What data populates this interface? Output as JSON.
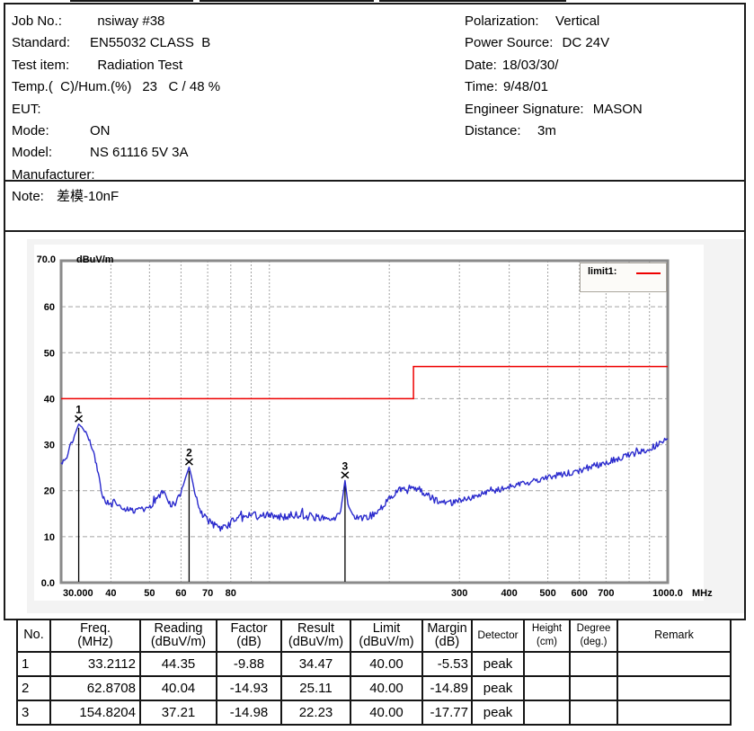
{
  "header": {
    "left_rows": [
      {
        "label": "Job No.:",
        "value": "  nsiway #38"
      },
      {
        "label": "Standard:",
        "value": "EN55032 CLASS  B"
      },
      {
        "label": "Test item:",
        "value": "  Radiation Test"
      },
      {
        "label": "Temp.(  C)/Hum.(%)",
        "value": "23   C / 48 %"
      },
      {
        "label": "EUT:",
        "value": ""
      },
      {
        "label": "Mode:",
        "value": "ON"
      },
      {
        "label": "Model:",
        "value": "NS 61116 5V 3A"
      },
      {
        "label": "Manufacturer:",
        "value": ""
      }
    ],
    "right_rows": [
      {
        "label": "Polarization:",
        "value": "   Vertical"
      },
      {
        "label": "Power Source:",
        "value": " DC 24V"
      },
      {
        "label": "Date:",
        "value": "18/03/30/"
      },
      {
        "label": "Time:",
        "value": "9/48/01"
      },
      {
        "label": "Engineer Signature:",
        "value": " MASON"
      },
      {
        "label": "Distance:",
        "value": "   3m"
      }
    ]
  },
  "note": {
    "label": "Note:",
    "value": "差模-10nF"
  },
  "chart_data": {
    "type": "line",
    "x_scale": "log",
    "x_range": [
      30,
      1000
    ],
    "y_range": [
      0,
      70
    ],
    "x_unit": "MHz",
    "y_unit": "dBuV/m",
    "y_top_label": "70.0",
    "y_bottom_label": "0.0",
    "y_tick_labels": [
      60,
      50,
      40,
      30,
      20,
      10
    ],
    "x_gridlines": [
      40,
      50,
      60,
      70,
      80,
      90,
      100,
      200,
      300,
      400,
      500,
      600,
      700,
      800,
      900
    ],
    "x_tick_labels": [
      {
        "f": 30,
        "text": "30.000"
      },
      {
        "f": 40,
        "text": "40"
      },
      {
        "f": 50,
        "text": "50"
      },
      {
        "f": 60,
        "text": "60"
      },
      {
        "f": 70,
        "text": "70"
      },
      {
        "f": 80,
        "text": "80"
      },
      {
        "f": 300,
        "text": "300"
      },
      {
        "f": 400,
        "text": "400"
      },
      {
        "f": 500,
        "text": "500"
      },
      {
        "f": 600,
        "text": "600"
      },
      {
        "f": 700,
        "text": "700"
      },
      {
        "f": 1000,
        "text": "1000.0"
      }
    ],
    "legend": {
      "label": "limit1:",
      "color": "#ee0000"
    },
    "limit_line": {
      "name": "limit1",
      "color": "#ee0000",
      "points": [
        [
          30,
          40
        ],
        [
          230,
          40
        ],
        [
          230,
          47
        ],
        [
          1000,
          47
        ]
      ]
    },
    "markers": [
      {
        "no": "1",
        "freq": 33.2112,
        "value": 34.47
      },
      {
        "no": "2",
        "freq": 62.8708,
        "value": 25.11
      },
      {
        "no": "3",
        "freq": 154.8204,
        "value": 22.23
      }
    ],
    "trace": {
      "color": "#2b2bcd",
      "anchors": [
        [
          30,
          25.8
        ],
        [
          30.6,
          26.5
        ],
        [
          31.2,
          28.2
        ],
        [
          32,
          30.8
        ],
        [
          32.6,
          32.6
        ],
        [
          33.2112,
          34.47
        ],
        [
          33.8,
          33.8
        ],
        [
          34.6,
          32.6
        ],
        [
          35.4,
          31
        ],
        [
          36.2,
          28.6
        ],
        [
          37,
          24.5
        ],
        [
          37.8,
          20
        ],
        [
          38.6,
          17.6
        ],
        [
          39.5,
          17.2
        ],
        [
          40.5,
          17.9
        ],
        [
          41.5,
          16.6
        ],
        [
          43,
          16.1
        ],
        [
          45,
          15.6
        ],
        [
          47,
          15.9
        ],
        [
          49,
          16.1
        ],
        [
          51,
          16.9
        ],
        [
          52.5,
          18.6
        ],
        [
          54,
          19.7
        ],
        [
          55,
          18.7
        ],
        [
          56.5,
          16.9
        ],
        [
          58,
          17.3
        ],
        [
          60,
          19.6
        ],
        [
          61.5,
          22.6
        ],
        [
          62.8708,
          25.11
        ],
        [
          63.8,
          23
        ],
        [
          65,
          19.5
        ],
        [
          66.5,
          16.5
        ],
        [
          68,
          14.8
        ],
        [
          70,
          13.6
        ],
        [
          72,
          12.8
        ],
        [
          74.5,
          12
        ],
        [
          77,
          11.9
        ],
        [
          79,
          12.5
        ],
        [
          82,
          14
        ],
        [
          86,
          14.6
        ],
        [
          90,
          14.8
        ],
        [
          95,
          14.3
        ],
        [
          100,
          14.7
        ],
        [
          108,
          14.3
        ],
        [
          116,
          14.8
        ],
        [
          124,
          14.4
        ],
        [
          132,
          14.2
        ],
        [
          140,
          13.9
        ],
        [
          147,
          14.4
        ],
        [
          151,
          15.6
        ],
        [
          154.8204,
          22.23
        ],
        [
          157.5,
          17
        ],
        [
          161,
          14.9
        ],
        [
          168,
          14.2
        ],
        [
          176,
          14.1
        ],
        [
          184,
          15.1
        ],
        [
          192,
          16.6
        ],
        [
          200,
          18.1
        ],
        [
          208,
          19.7
        ],
        [
          215,
          20.2
        ],
        [
          222,
          19.9
        ],
        [
          230,
          20.7
        ],
        [
          238,
          20.2
        ],
        [
          248,
          19.2
        ],
        [
          258,
          18.2
        ],
        [
          268,
          17.6
        ],
        [
          280,
          17.3
        ],
        [
          292,
          17.7
        ],
        [
          305,
          18
        ],
        [
          320,
          18.4
        ],
        [
          340,
          19.2
        ],
        [
          360,
          19.8
        ],
        [
          380,
          20.3
        ],
        [
          400,
          20.8
        ],
        [
          425,
          21.3
        ],
        [
          450,
          21.8
        ],
        [
          475,
          22.3
        ],
        [
          500,
          22.8
        ],
        [
          530,
          23.3
        ],
        [
          560,
          23.8
        ],
        [
          590,
          24.2
        ],
        [
          620,
          24.8
        ],
        [
          650,
          25.3
        ],
        [
          680,
          25.8
        ],
        [
          710,
          26.3
        ],
        [
          740,
          26.8
        ],
        [
          770,
          27.2
        ],
        [
          800,
          27.8
        ],
        [
          840,
          28.3
        ],
        [
          880,
          28.9
        ],
        [
          920,
          29.6
        ],
        [
          960,
          30.4
        ],
        [
          1000,
          31.2
        ]
      ]
    }
  },
  "table": {
    "headers": [
      {
        "key": "no",
        "line1": "No.",
        "line2": ""
      },
      {
        "key": "freq",
        "line1": "Freq.",
        "line2": "(MHz)"
      },
      {
        "key": "reading",
        "line1": "Reading",
        "line2": "(dBuV/m)"
      },
      {
        "key": "factor",
        "line1": "Factor",
        "line2": "(dB)"
      },
      {
        "key": "result",
        "line1": "Result",
        "line2": "(dBuV/m)"
      },
      {
        "key": "limit",
        "line1": "Limit",
        "line2": "(dBuV/m)"
      },
      {
        "key": "margin",
        "line1": "Margin",
        "line2": "(dB)"
      },
      {
        "key": "detector",
        "line1": "Detector",
        "line2": ""
      },
      {
        "key": "height",
        "line1": "Height",
        "line2": "(cm)"
      },
      {
        "key": "degree",
        "line1": "Degree",
        "line2": "(deg.)"
      },
      {
        "key": "remark",
        "line1": "Remark",
        "line2": ""
      }
    ],
    "rows": [
      [
        "1",
        "33.2112",
        "44.35",
        "-9.88",
        "34.47",
        "40.00",
        "-5.53",
        "peak",
        "",
        "",
        ""
      ],
      [
        "2",
        "62.8708",
        "40.04",
        "-14.93",
        "25.11",
        "40.00",
        "-14.89",
        "peak",
        "",
        "",
        ""
      ],
      [
        "3",
        "154.8204",
        "37.21",
        "-14.98",
        "22.23",
        "40.00",
        "-17.77",
        "peak",
        "",
        "",
        ""
      ]
    ]
  }
}
